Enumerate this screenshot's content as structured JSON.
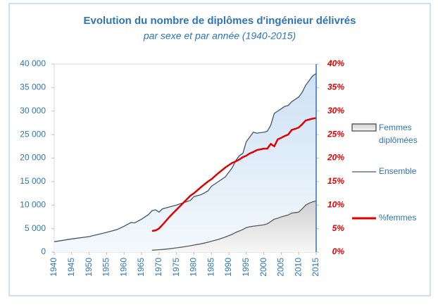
{
  "chart_data": {
    "type": "area-line",
    "title": "Evolution du nombre de diplômes d'ingénieur délivrés",
    "subtitle": "par sexe et par année (1940-2015)",
    "x": [
      1940,
      1945,
      1950,
      1955,
      1958,
      1960,
      1962,
      1963,
      1965,
      1967,
      1968,
      1969,
      1970,
      1971,
      1973,
      1975,
      1977,
      1979,
      1980,
      1982,
      1984,
      1985,
      1987,
      1989,
      1990,
      1991,
      1992,
      1993,
      1994,
      1995,
      1996,
      1997,
      1998,
      2000,
      2001,
      2002,
      2003,
      2004,
      2005,
      2006,
      2007,
      2008,
      2009,
      2010,
      2011,
      2012,
      2013,
      2014,
      2015
    ],
    "series": [
      {
        "name": "Femmes diplômées",
        "color": "#e3e3e3",
        "line_color": "#595959",
        "kind": "area",
        "values": [
          null,
          null,
          null,
          null,
          null,
          null,
          null,
          null,
          null,
          null,
          400,
          450,
          500,
          550,
          700,
          900,
          1100,
          1350,
          1500,
          1750,
          2100,
          2300,
          2700,
          3200,
          3500,
          3800,
          4200,
          4500,
          4800,
          5200,
          5400,
          5500,
          5600,
          5800,
          6000,
          6500,
          7000,
          7200,
          7500,
          7700,
          7900,
          8300,
          8400,
          8500,
          9200,
          10000,
          10400,
          10700,
          10900
        ]
      },
      {
        "name": "Ensemble",
        "color": "#dbe9f7",
        "line_color": "#44546a",
        "kind": "area",
        "values": [
          2200,
          2800,
          3300,
          4200,
          4800,
          5500,
          6300,
          6200,
          7000,
          8000,
          8800,
          9000,
          8500,
          9200,
          9600,
          10000,
          10500,
          11000,
          11800,
          12200,
          13000,
          14000,
          15000,
          16000,
          17000,
          18000,
          19500,
          20500,
          21000,
          23500,
          24500,
          25500,
          25300,
          25500,
          25700,
          27000,
          29500,
          30000,
          30500,
          31000,
          31200,
          32000,
          32500,
          33000,
          34000,
          35500,
          36500,
          37500,
          38000
        ]
      },
      {
        "name": "%femmes",
        "color": "#e00000",
        "kind": "line",
        "axis": "y2",
        "values": [
          null,
          null,
          null,
          null,
          null,
          null,
          null,
          null,
          null,
          null,
          4.5,
          4.6,
          5,
          5.8,
          7.5,
          9,
          10.5,
          12,
          12.5,
          13.8,
          15,
          15.5,
          16.8,
          18,
          18.5,
          19,
          19.3,
          19.7,
          20.2,
          20.5,
          21,
          21.3,
          21.7,
          22,
          22,
          23,
          22.5,
          24,
          24.3,
          24.7,
          25,
          26,
          26.2,
          26.5,
          27.2,
          28,
          28.2,
          28.4,
          28.5
        ]
      }
    ],
    "xlim": [
      1940,
      2015
    ],
    "xticks": [
      1940,
      1945,
      1950,
      1955,
      1960,
      1965,
      1970,
      1975,
      1980,
      1985,
      1990,
      1995,
      2000,
      2005,
      2010,
      2015
    ],
    "ylim": [
      0,
      40000
    ],
    "yticks": [
      0,
      {
        "value": 5000,
        "label": "5 000"
      },
      {
        "value": 10000,
        "label": "10 000"
      },
      {
        "value": 15000,
        "label": "15 000"
      },
      {
        "value": 20000,
        "label": "20 000"
      },
      {
        "value": 25000,
        "label": "25 000"
      },
      {
        "value": 30000,
        "label": "30 000"
      },
      {
        "value": 35000,
        "label": "35 000"
      },
      {
        "value": 40000,
        "label": "40 000"
      }
    ],
    "y2lim": [
      0,
      40
    ],
    "y2ticks": [
      {
        "value": 0,
        "label": "0%"
      },
      {
        "value": 5,
        "label": "5%"
      },
      {
        "value": 10,
        "label": "10%"
      },
      {
        "value": 15,
        "label": "15%"
      },
      {
        "value": 20,
        "label": "20%"
      },
      {
        "value": 25,
        "label": "25%"
      },
      {
        "value": 30,
        "label": "30%"
      },
      {
        "value": 35,
        "label": "35%"
      },
      {
        "value": 40,
        "label": "40%"
      }
    ],
    "legend": "right"
  }
}
